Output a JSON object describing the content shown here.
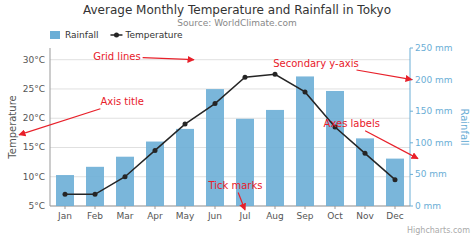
{
  "chart_data": {
    "type": "bar",
    "title": "Average Monthly Temperature and Rainfall in Tokyo",
    "subtitle": "Source: WorldClimate.com",
    "y_label": "Temperature",
    "y2_label": "Rainfall",
    "categories": [
      "Jan",
      "Feb",
      "Mar",
      "Apr",
      "May",
      "Jun",
      "Jul",
      "Aug",
      "Sep",
      "Oct",
      "Nov",
      "Dec"
    ],
    "series": [
      {
        "name": "Rainfall",
        "type": "bar",
        "axis": "y2",
        "color": "#6baed6",
        "values": [
          49,
          62,
          78,
          102,
          122,
          185,
          138,
          152,
          205,
          182,
          107,
          75
        ]
      },
      {
        "name": "Temperature",
        "type": "line",
        "color": "#252525",
        "marker": "circle",
        "values": [
          7.0,
          7.0,
          10.0,
          14.5,
          19.0,
          22.5,
          27.0,
          27.5,
          24.5,
          18.5,
          14.0,
          9.5
        ]
      }
    ],
    "ylim": [
      5,
      32
    ],
    "yticks": [
      {
        "value": 5,
        "label": "5°C"
      },
      {
        "value": 10,
        "label": "10°C"
      },
      {
        "value": 15,
        "label": "15°C"
      },
      {
        "value": 20,
        "label": "20°C"
      },
      {
        "value": 25,
        "label": "25°C"
      },
      {
        "value": 30,
        "label": "30°C"
      }
    ],
    "y2lim": [
      0,
      250
    ],
    "y2ticks": [
      {
        "value": 0,
        "label": "0 mm"
      },
      {
        "value": 50,
        "label": "50 mm"
      },
      {
        "value": 100,
        "label": "100 mm"
      },
      {
        "value": 150,
        "label": "150 mm"
      },
      {
        "value": 200,
        "label": "200 mm"
      },
      {
        "value": 250,
        "label": "250 mm"
      }
    ],
    "grid": true,
    "legend": "upper left",
    "annotations": [
      {
        "text": "Grid lines",
        "color": "#e8202a"
      },
      {
        "text": "Secondary y-axis",
        "color": "#e8202a"
      },
      {
        "text": "Axis title",
        "color": "#e8202a"
      },
      {
        "text": "Axes labels",
        "color": "#e8202a"
      },
      {
        "text": "Tick marks",
        "color": "#e8202a"
      }
    ],
    "credit": "Highcharts.com"
  }
}
